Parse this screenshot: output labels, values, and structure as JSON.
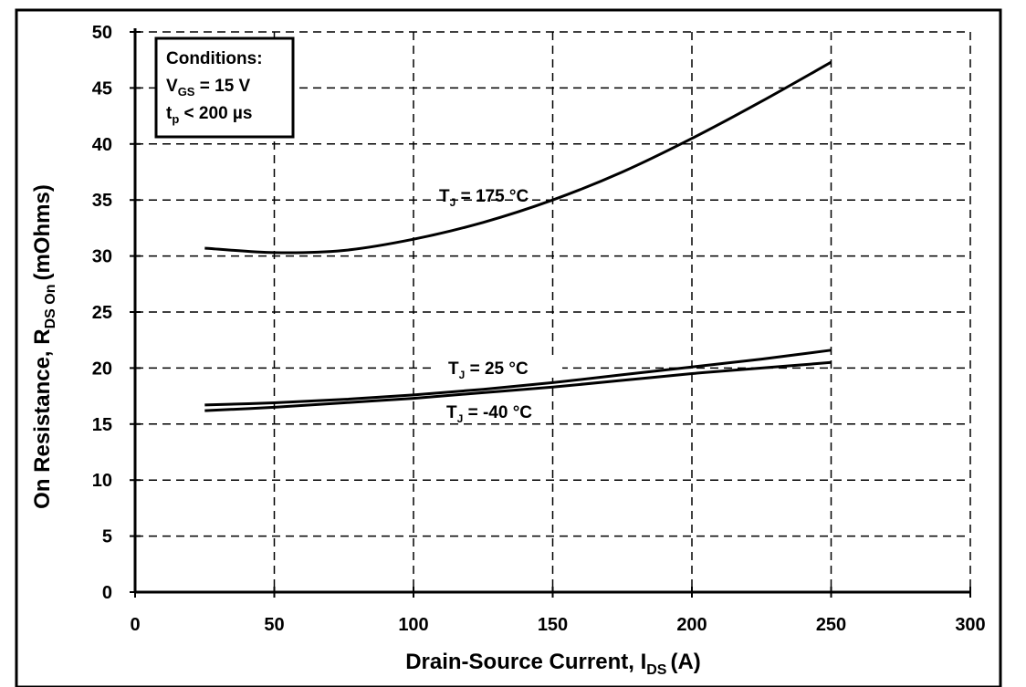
{
  "chart_data": {
    "type": "line",
    "title": "",
    "xlabel": "Drain-Source Current, I",
    "xlabel_sub": "DS",
    "xlabel_unit": "(A)",
    "ylabel": "On Resistance, R",
    "ylabel_sub": "DS On",
    "ylabel_unit": "(mOhms)",
    "xlim": [
      0,
      300
    ],
    "ylim": [
      0,
      50
    ],
    "x_ticks": [
      0,
      50,
      100,
      150,
      200,
      250,
      300
    ],
    "y_ticks": [
      0,
      5,
      10,
      15,
      20,
      25,
      30,
      35,
      40,
      45,
      50
    ],
    "grid": true,
    "legend_position": "top-left",
    "legend": {
      "title": "Conditions:",
      "line1_prefix": "V",
      "line1_sub": "GS",
      "line1_value": " = 15 V",
      "line2_prefix": "t",
      "line2_sub": "p",
      "line2_value": " < 200 µs"
    },
    "series": [
      {
        "label_prefix": "T",
        "label_sub": "J",
        "label_value": " = 175 °C",
        "x": [
          25,
          50,
          75,
          100,
          125,
          150,
          175,
          200,
          225,
          250
        ],
        "y": [
          30.7,
          30.3,
          30.5,
          31.5,
          33.0,
          35.0,
          37.5,
          40.5,
          43.8,
          47.3
        ]
      },
      {
        "label_prefix": "T",
        "label_sub": "J",
        "label_value": " = 25 °C",
        "x": [
          25,
          50,
          75,
          100,
          125,
          150,
          175,
          200,
          225,
          250
        ],
        "y": [
          16.7,
          16.9,
          17.2,
          17.6,
          18.1,
          18.7,
          19.4,
          20.1,
          20.8,
          21.6
        ]
      },
      {
        "label_prefix": "T",
        "label_sub": "J",
        "label_value": " = -40 °C",
        "x": [
          25,
          50,
          75,
          100,
          125,
          150,
          175,
          200,
          225,
          250
        ],
        "y": [
          16.2,
          16.5,
          16.9,
          17.3,
          17.8,
          18.3,
          18.9,
          19.5,
          20.0,
          20.5
        ]
      }
    ]
  }
}
